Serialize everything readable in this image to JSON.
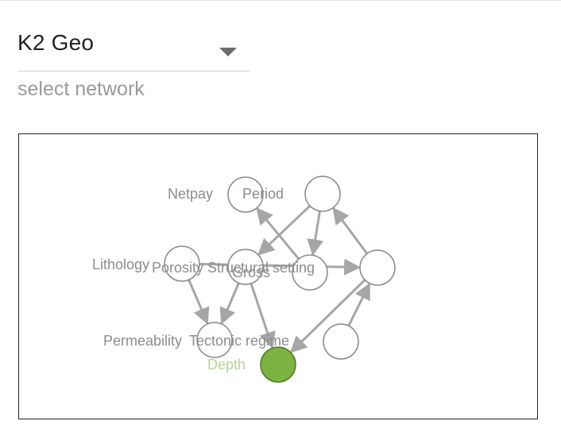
{
  "network_select": {
    "value": "K2 Geo",
    "helper_text": "select network"
  },
  "colors": {
    "edge": "#a6a6a6",
    "node_stroke": "#8a8a8a",
    "node_fill": "#ffffff",
    "selected_node_fill": "#7cb342",
    "selected_label": "#b9d29b",
    "label": "#8c8c8c"
  },
  "graph": {
    "nodes": [
      {
        "id": "netpay",
        "label": "Netpay"
      },
      {
        "id": "period",
        "label": "Period"
      },
      {
        "id": "unnamed_top",
        "label": ""
      },
      {
        "id": "lithology",
        "label": "Lithology"
      },
      {
        "id": "porosity",
        "label": "Porosity"
      },
      {
        "id": "gross",
        "label": "Gross"
      },
      {
        "id": "structural_setting",
        "label": "Structural setting"
      },
      {
        "id": "unnamed_right",
        "label": ""
      },
      {
        "id": "permeability",
        "label": "Permeability"
      },
      {
        "id": "tectonic_regime",
        "label": "Tectonic regime"
      },
      {
        "id": "depth",
        "label": "Depth",
        "selected": true
      },
      {
        "id": "unnamed_bottom",
        "label": ""
      }
    ],
    "edges": [
      {
        "from": "structural_setting",
        "to": "period"
      },
      {
        "from": "unnamed_top",
        "to": "porosity"
      },
      {
        "from": "unnamed_top",
        "to": "structural_setting"
      },
      {
        "from": "unnamed_right",
        "to": "unnamed_top"
      },
      {
        "from": "unnamed_right",
        "to": "depth"
      },
      {
        "from": "unnamed_bottom",
        "to": "unnamed_right"
      },
      {
        "from": "lithology",
        "to": "permeability"
      },
      {
        "from": "porosity",
        "to": "permeability"
      },
      {
        "from": "porosity",
        "to": "depth"
      },
      {
        "from": "lithology",
        "to": "unnamed_right"
      }
    ]
  }
}
